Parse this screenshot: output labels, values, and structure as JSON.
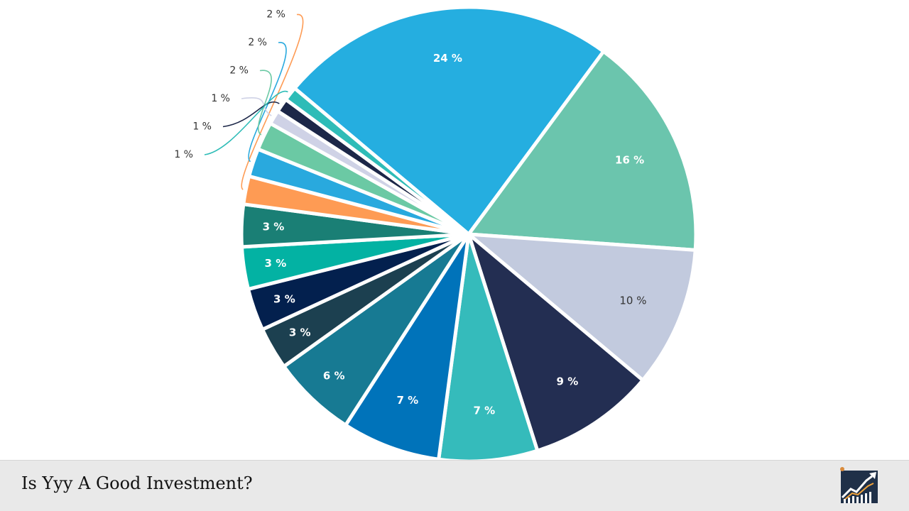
{
  "page_title": "Is Yyy A Good Investment?",
  "logo_icon": "rising-chart-logo-icon",
  "chart_data": {
    "type": "pie",
    "slices": [
      {
        "label": "24 %",
        "value": 24,
        "color": "#25aee0"
      },
      {
        "label": "16 %",
        "value": 16,
        "color": "#6bc5ad"
      },
      {
        "label": "10 %",
        "value": 10,
        "color": "#c2cade"
      },
      {
        "label": "9 %",
        "value": 9,
        "color": "#232e52"
      },
      {
        "label": "7 %",
        "value": 7,
        "color": "#35bbbb"
      },
      {
        "label": "7 %",
        "value": 7,
        "color": "#0073ba"
      },
      {
        "label": "6 %",
        "value": 6,
        "color": "#177a93"
      },
      {
        "label": "3 %",
        "value": 3,
        "color": "#1c4050"
      },
      {
        "label": "3 %",
        "value": 3,
        "color": "#03204e"
      },
      {
        "label": "3 %",
        "value": 3,
        "color": "#03b2a3"
      },
      {
        "label": "3 %",
        "value": 3,
        "color": "#1a7f75"
      },
      {
        "label": "2 %",
        "value": 2,
        "color": "#fe9b54"
      },
      {
        "label": "2 %",
        "value": 2,
        "color": "#29a9de"
      },
      {
        "label": "2 %",
        "value": 2,
        "color": "#6bc9a4"
      },
      {
        "label": "1 %",
        "value": 1,
        "color": "#cfd2e6"
      },
      {
        "label": "1 %",
        "value": 1,
        "color": "#1c2748"
      },
      {
        "label": "1 %",
        "value": 1,
        "color": "#2ebcb7"
      }
    ]
  }
}
